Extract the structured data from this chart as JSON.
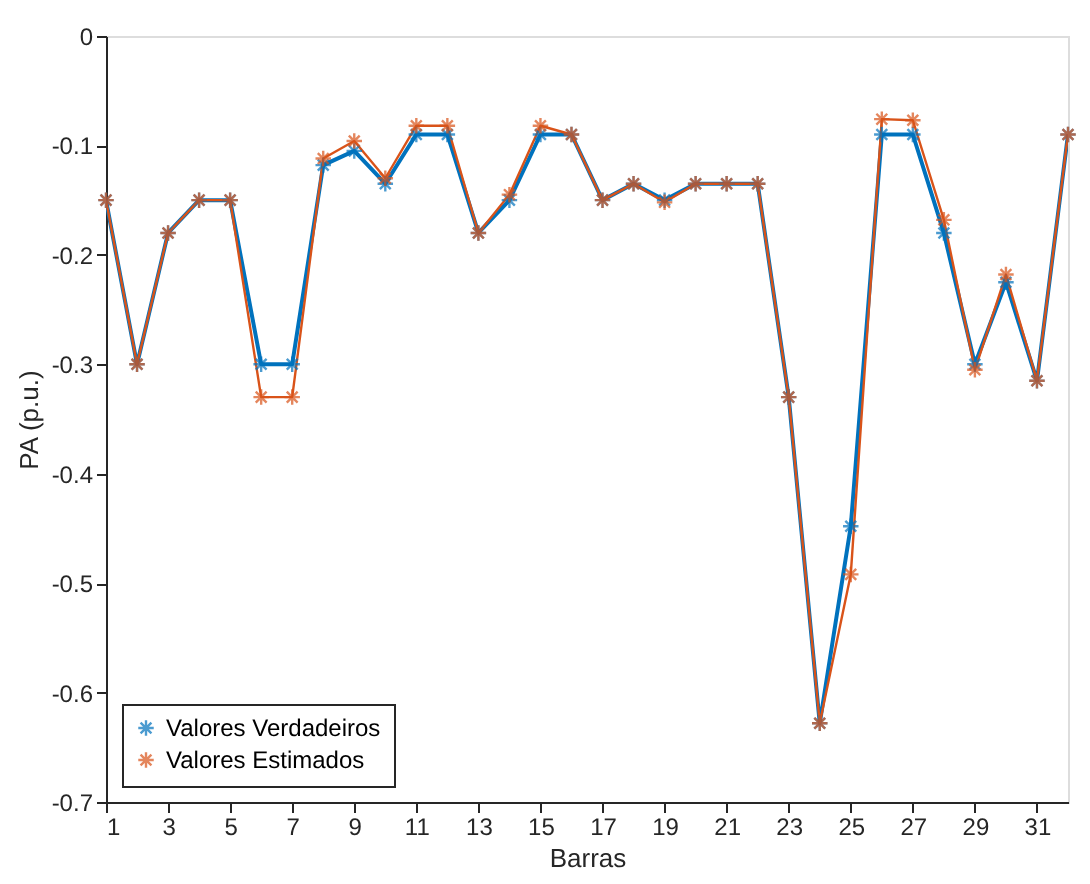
{
  "chart_data": {
    "type": "line",
    "xlabel": "Barras",
    "ylabel": "PA (p.u.)",
    "x": [
      1,
      2,
      3,
      4,
      5,
      6,
      7,
      8,
      9,
      10,
      11,
      12,
      13,
      14,
      15,
      16,
      17,
      18,
      19,
      20,
      21,
      22,
      23,
      24,
      25,
      26,
      27,
      28,
      29,
      30,
      31,
      32
    ],
    "series": [
      {
        "name": "Valores Verdadeiros",
        "color": "#0072bd",
        "values": [
          -0.15,
          -0.3,
          -0.18,
          -0.15,
          -0.15,
          -0.3,
          -0.3,
          -0.118,
          -0.105,
          -0.135,
          -0.09,
          -0.09,
          -0.18,
          -0.15,
          -0.09,
          -0.09,
          -0.15,
          -0.135,
          -0.15,
          -0.135,
          -0.135,
          -0.135,
          -0.33,
          -0.628,
          -0.448,
          -0.09,
          -0.09,
          -0.18,
          -0.3,
          -0.225,
          -0.315,
          -0.09
        ]
      },
      {
        "name": "Valores Estimados",
        "color": "#d95319",
        "values": [
          -0.15,
          -0.3,
          -0.18,
          -0.15,
          -0.15,
          -0.33,
          -0.33,
          -0.112,
          -0.096,
          -0.13,
          -0.082,
          -0.082,
          -0.18,
          -0.145,
          -0.082,
          -0.09,
          -0.15,
          -0.135,
          -0.152,
          -0.135,
          -0.135,
          -0.135,
          -0.33,
          -0.628,
          -0.492,
          -0.076,
          -0.077,
          -0.168,
          -0.305,
          -0.218,
          -0.315,
          -0.09
        ]
      }
    ],
    "xlim": [
      1,
      32
    ],
    "xticks": [
      1,
      3,
      5,
      7,
      9,
      11,
      13,
      15,
      17,
      19,
      21,
      23,
      25,
      27,
      29,
      31
    ],
    "ylim": [
      -0.7,
      0
    ],
    "yticks": [
      -0.7,
      -0.6,
      -0.5,
      -0.4,
      -0.3,
      -0.2,
      -0.1,
      0
    ],
    "grid": false,
    "legend": "bottom left",
    "marker": "cross",
    "line_style": "solid"
  }
}
